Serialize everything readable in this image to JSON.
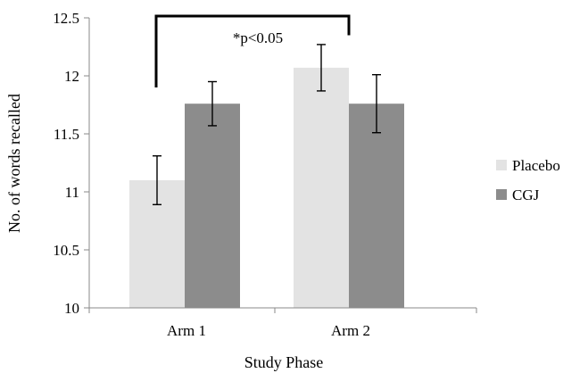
{
  "chart_data": {
    "type": "bar",
    "title": "",
    "xlabel": "Study Phase",
    "ylabel": "No. of words recalled",
    "categories": [
      "Arm 1",
      "Arm 2"
    ],
    "ylim": [
      10,
      12.5
    ],
    "yticks": [
      10,
      10.5,
      11,
      11.5,
      12,
      12.5
    ],
    "ytick_labels": [
      "10",
      "10.5",
      "11",
      "11.5",
      "12",
      "12.5"
    ],
    "grid": false,
    "legend_position": "right",
    "series": [
      {
        "name": "Placebo",
        "color": "#e3e3e3",
        "values": [
          11.1,
          12.07
        ],
        "error": [
          0.21,
          0.2
        ]
      },
      {
        "name": "CGJ",
        "color": "#8c8c8c",
        "values": [
          11.76,
          11.76
        ],
        "error": [
          0.19,
          0.25
        ]
      }
    ],
    "annotation": {
      "text": "*p<0.05",
      "from_category": "Arm 1",
      "to_category": "Arm 2",
      "bracket_level": 12.5,
      "bracket_drop_to": 11.9,
      "bracket_right_drop_to": 12.35
    }
  }
}
